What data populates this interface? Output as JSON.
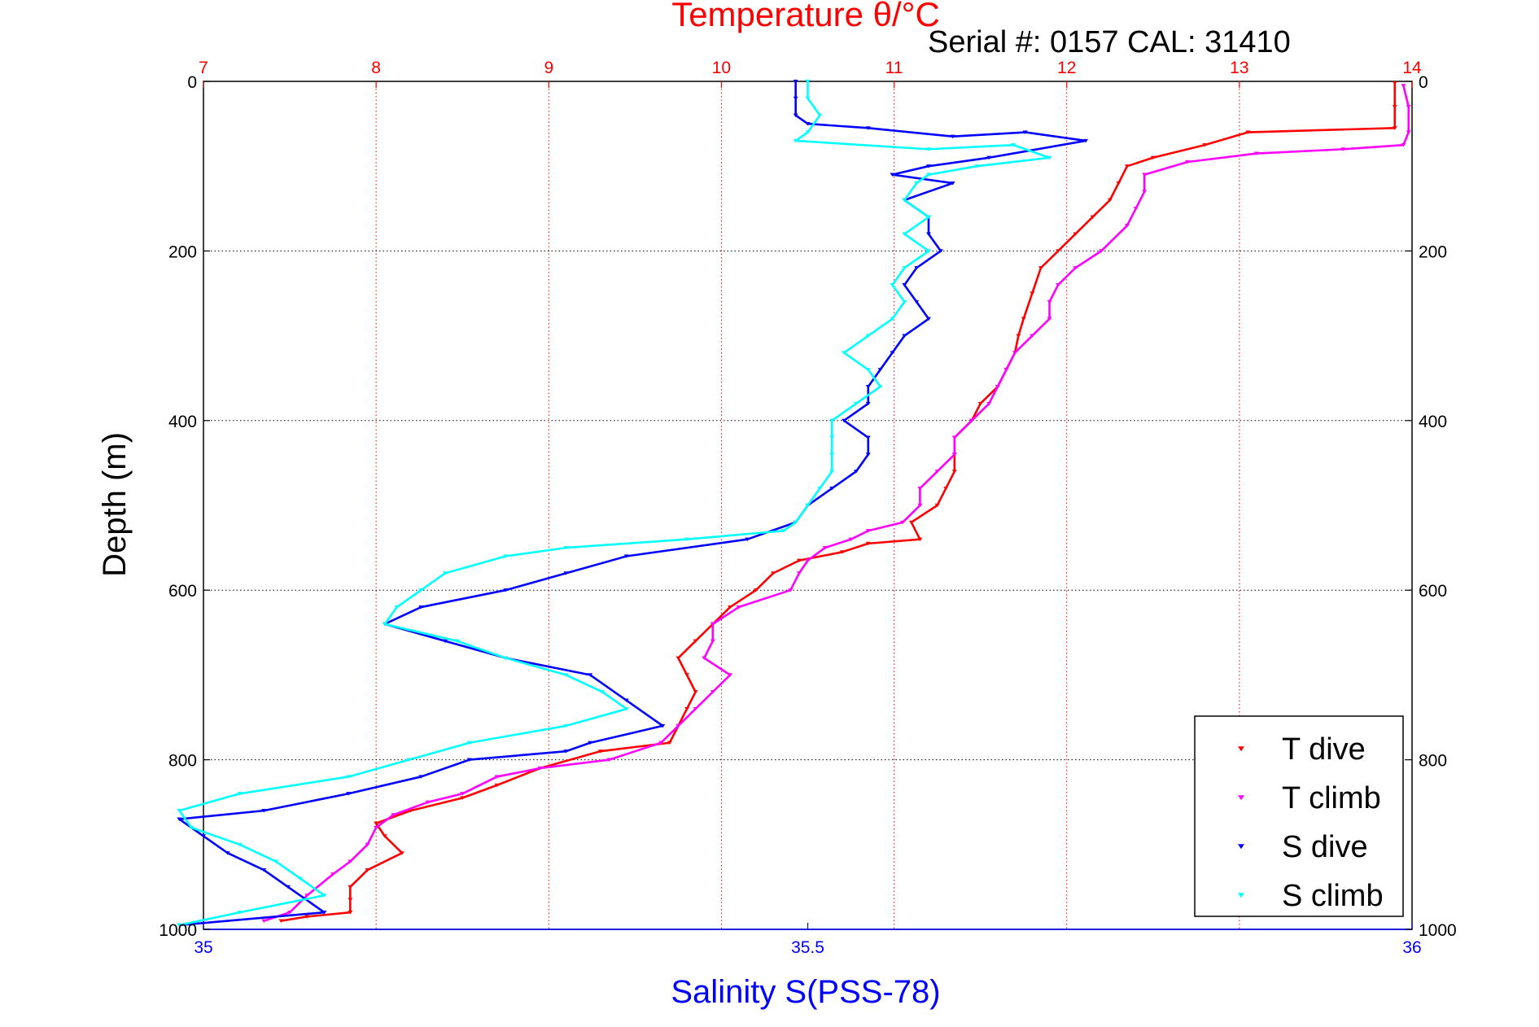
{
  "chart_data": {
    "type": "scatter",
    "title": "Temperature θ/°C",
    "subtitle": "Serial #: 0157  CAL: 31410",
    "ylabel": "Depth (m)",
    "xlabel": "Salinity S(PSS-78)",
    "y_axis": {
      "range": [
        0,
        1000
      ],
      "reversed": true,
      "ticks": [
        "0",
        "200",
        "400",
        "600",
        "800",
        "1000"
      ]
    },
    "x_top_temperature": {
      "range": [
        7,
        14
      ],
      "ticks": [
        "7",
        "8",
        "9",
        "10",
        "11",
        "12",
        "13",
        "14"
      ]
    },
    "x_bottom_salinity": {
      "range": [
        35,
        36
      ],
      "ticks": [
        "35",
        "35.5",
        "36"
      ]
    },
    "grid": true,
    "legend": "bottom-right",
    "colors": {
      "title": "#ff0000",
      "xlabel": "#0000ff",
      "top_ticks": "#ff0000",
      "bottom_ticks": "#0000ff",
      "grid_vertical": "#ff0000",
      "grid_horizontal": "#000000"
    },
    "series": [
      {
        "name": "T dive",
        "axis": "temperature",
        "color": "#ff0000",
        "points": [
          [
            13.9,
            2
          ],
          [
            13.9,
            30
          ],
          [
            13.9,
            55
          ],
          [
            13.05,
            60
          ],
          [
            12.8,
            75
          ],
          [
            12.5,
            90
          ],
          [
            12.35,
            100
          ],
          [
            12.3,
            120
          ],
          [
            12.25,
            140
          ],
          [
            12.15,
            160
          ],
          [
            12.05,
            180
          ],
          [
            11.95,
            200
          ],
          [
            11.85,
            220
          ],
          [
            11.8,
            250
          ],
          [
            11.75,
            280
          ],
          [
            11.72,
            300
          ],
          [
            11.7,
            320
          ],
          [
            11.65,
            340
          ],
          [
            11.6,
            360
          ],
          [
            11.5,
            380
          ],
          [
            11.45,
            400
          ],
          [
            11.35,
            420
          ],
          [
            11.35,
            440
          ],
          [
            11.35,
            460
          ],
          [
            11.3,
            480
          ],
          [
            11.25,
            500
          ],
          [
            11.1,
            520
          ],
          [
            11.15,
            540
          ],
          [
            10.85,
            545
          ],
          [
            10.7,
            555
          ],
          [
            10.45,
            565
          ],
          [
            10.3,
            580
          ],
          [
            10.2,
            600
          ],
          [
            10.05,
            620
          ],
          [
            9.95,
            640
          ],
          [
            9.85,
            660
          ],
          [
            9.75,
            680
          ],
          [
            9.8,
            700
          ],
          [
            9.85,
            720
          ],
          [
            9.8,
            740
          ],
          [
            9.75,
            760
          ],
          [
            9.7,
            780
          ],
          [
            9.3,
            790
          ],
          [
            8.95,
            810
          ],
          [
            8.7,
            830
          ],
          [
            8.5,
            845
          ],
          [
            8.2,
            860
          ],
          [
            8.0,
            875
          ],
          [
            8.05,
            890
          ],
          [
            8.15,
            910
          ],
          [
            7.95,
            930
          ],
          [
            7.85,
            950
          ],
          [
            7.85,
            965
          ],
          [
            7.85,
            980
          ],
          [
            7.6,
            985
          ],
          [
            7.45,
            990
          ]
        ]
      },
      {
        "name": "T climb",
        "axis": "temperature",
        "color": "#ff00ff",
        "points": [
          [
            13.95,
            5
          ],
          [
            13.98,
            30
          ],
          [
            13.98,
            60
          ],
          [
            13.95,
            75
          ],
          [
            13.6,
            80
          ],
          [
            13.1,
            85
          ],
          [
            12.7,
            95
          ],
          [
            12.45,
            110
          ],
          [
            12.45,
            130
          ],
          [
            12.4,
            150
          ],
          [
            12.35,
            170
          ],
          [
            12.2,
            200
          ],
          [
            12.05,
            220
          ],
          [
            11.95,
            240
          ],
          [
            11.9,
            260
          ],
          [
            11.9,
            280
          ],
          [
            11.8,
            300
          ],
          [
            11.7,
            320
          ],
          [
            11.65,
            340
          ],
          [
            11.6,
            360
          ],
          [
            11.55,
            380
          ],
          [
            11.45,
            400
          ],
          [
            11.35,
            420
          ],
          [
            11.35,
            440
          ],
          [
            11.25,
            460
          ],
          [
            11.15,
            480
          ],
          [
            11.15,
            500
          ],
          [
            11.05,
            520
          ],
          [
            10.85,
            530
          ],
          [
            10.75,
            540
          ],
          [
            10.6,
            550
          ],
          [
            10.5,
            565
          ],
          [
            10.45,
            580
          ],
          [
            10.4,
            600
          ],
          [
            10.1,
            620
          ],
          [
            9.95,
            640
          ],
          [
            9.95,
            660
          ],
          [
            9.9,
            680
          ],
          [
            10.05,
            700
          ],
          [
            9.95,
            720
          ],
          [
            9.85,
            740
          ],
          [
            9.75,
            760
          ],
          [
            9.65,
            780
          ],
          [
            9.35,
            800
          ],
          [
            8.95,
            810
          ],
          [
            8.7,
            820
          ],
          [
            8.5,
            840
          ],
          [
            8.3,
            850
          ],
          [
            8.1,
            865
          ],
          [
            8.0,
            880
          ],
          [
            7.95,
            900
          ],
          [
            7.85,
            920
          ],
          [
            7.75,
            935
          ],
          [
            7.6,
            960
          ],
          [
            7.5,
            980
          ],
          [
            7.35,
            990
          ]
        ]
      },
      {
        "name": "S dive",
        "axis": "salinity",
        "color": "#0000ff",
        "points": [
          [
            35.49,
            0
          ],
          [
            35.49,
            20
          ],
          [
            35.49,
            40
          ],
          [
            35.5,
            50
          ],
          [
            35.55,
            55
          ],
          [
            35.62,
            65
          ],
          [
            35.68,
            60
          ],
          [
            35.73,
            70
          ],
          [
            35.65,
            90
          ],
          [
            35.6,
            100
          ],
          [
            35.57,
            110
          ],
          [
            35.62,
            120
          ],
          [
            35.58,
            140
          ],
          [
            35.6,
            160
          ],
          [
            35.6,
            180
          ],
          [
            35.61,
            200
          ],
          [
            35.59,
            220
          ],
          [
            35.58,
            240
          ],
          [
            35.59,
            260
          ],
          [
            35.6,
            280
          ],
          [
            35.58,
            300
          ],
          [
            35.57,
            320
          ],
          [
            35.56,
            340
          ],
          [
            35.55,
            360
          ],
          [
            35.55,
            380
          ],
          [
            35.53,
            400
          ],
          [
            35.55,
            420
          ],
          [
            35.55,
            440
          ],
          [
            35.54,
            460
          ],
          [
            35.52,
            480
          ],
          [
            35.5,
            500
          ],
          [
            35.49,
            520
          ],
          [
            35.45,
            540
          ],
          [
            35.35,
            560
          ],
          [
            35.3,
            580
          ],
          [
            35.25,
            600
          ],
          [
            35.18,
            620
          ],
          [
            35.15,
            640
          ],
          [
            35.2,
            660
          ],
          [
            35.25,
            680
          ],
          [
            35.32,
            700
          ],
          [
            35.35,
            730
          ],
          [
            35.38,
            760
          ],
          [
            35.32,
            780
          ],
          [
            35.3,
            790
          ],
          [
            35.22,
            800
          ],
          [
            35.18,
            820
          ],
          [
            35.12,
            840
          ],
          [
            35.05,
            860
          ],
          [
            34.98,
            870
          ],
          [
            35.0,
            890
          ],
          [
            35.02,
            910
          ],
          [
            35.05,
            930
          ],
          [
            35.07,
            950
          ],
          [
            35.1,
            980
          ],
          [
            34.98,
            995
          ]
        ]
      },
      {
        "name": "S climb",
        "axis": "salinity",
        "color": "#00ffff",
        "points": [
          [
            35.5,
            0
          ],
          [
            35.5,
            20
          ],
          [
            35.51,
            40
          ],
          [
            35.5,
            60
          ],
          [
            35.49,
            70
          ],
          [
            35.6,
            80
          ],
          [
            35.67,
            75
          ],
          [
            35.7,
            90
          ],
          [
            35.64,
            100
          ],
          [
            35.6,
            110
          ],
          [
            35.59,
            120
          ],
          [
            35.58,
            140
          ],
          [
            35.6,
            160
          ],
          [
            35.58,
            180
          ],
          [
            35.6,
            200
          ],
          [
            35.58,
            220
          ],
          [
            35.57,
            240
          ],
          [
            35.58,
            260
          ],
          [
            35.57,
            280
          ],
          [
            35.55,
            300
          ],
          [
            35.53,
            320
          ],
          [
            35.55,
            340
          ],
          [
            35.56,
            360
          ],
          [
            35.54,
            380
          ],
          [
            35.52,
            400
          ],
          [
            35.52,
            420
          ],
          [
            35.52,
            440
          ],
          [
            35.52,
            460
          ],
          [
            35.51,
            480
          ],
          [
            35.5,
            500
          ],
          [
            35.49,
            520
          ],
          [
            35.48,
            530
          ],
          [
            35.4,
            540
          ],
          [
            35.3,
            550
          ],
          [
            35.25,
            560
          ],
          [
            35.2,
            580
          ],
          [
            35.18,
            600
          ],
          [
            35.16,
            620
          ],
          [
            35.15,
            640
          ],
          [
            35.21,
            660
          ],
          [
            35.25,
            680
          ],
          [
            35.3,
            700
          ],
          [
            35.33,
            720
          ],
          [
            35.35,
            740
          ],
          [
            35.3,
            760
          ],
          [
            35.22,
            780
          ],
          [
            35.17,
            800
          ],
          [
            35.12,
            820
          ],
          [
            35.03,
            840
          ],
          [
            34.98,
            860
          ],
          [
            34.99,
            880
          ],
          [
            35.03,
            900
          ],
          [
            35.06,
            920
          ],
          [
            35.08,
            940
          ],
          [
            35.1,
            960
          ],
          [
            35.03,
            980
          ],
          [
            34.98,
            995
          ]
        ]
      }
    ],
    "legend_entries": [
      "T dive",
      "T climb",
      "S dive",
      "S climb"
    ]
  }
}
